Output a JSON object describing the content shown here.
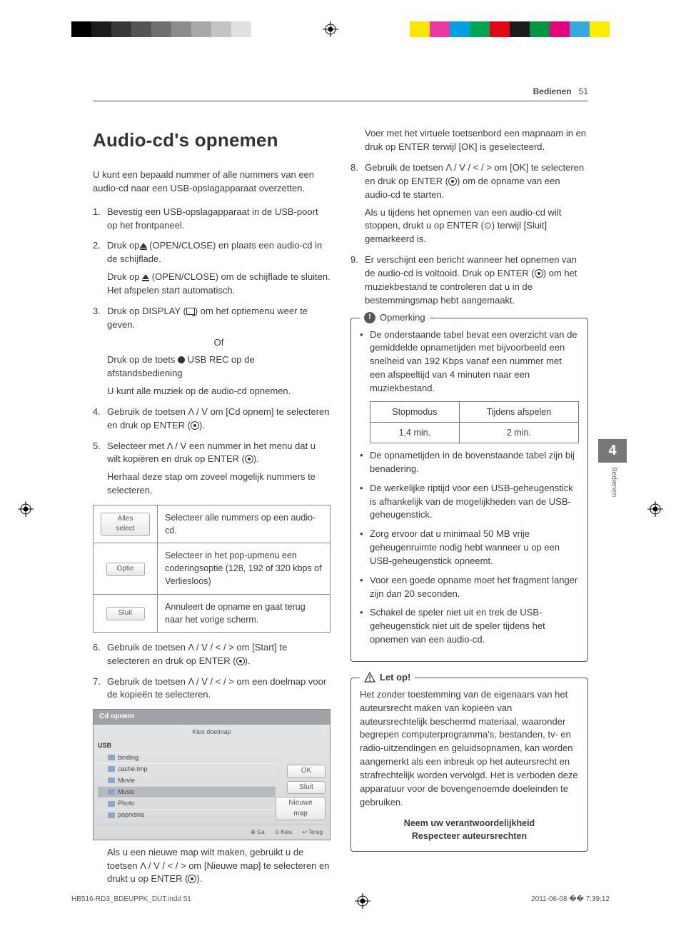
{
  "printbar": {
    "gray_shades": [
      "#000000",
      "#1c1c1c",
      "#383838",
      "#545454",
      "#707070",
      "#8c8c8c",
      "#a8a8a8",
      "#c4c4c4",
      "#e0e0e0",
      "#ffffff"
    ],
    "color_swatches": [
      "#ffffff",
      "#fce600",
      "#e73ba3",
      "#009fe3",
      "#00a54f",
      "#e30613",
      "#1d1d1b",
      "#009640",
      "#e6007e",
      "#36a9e1",
      "#ffed00"
    ]
  },
  "header": {
    "section": "Bedienen",
    "page": "51"
  },
  "left": {
    "h1": "Audio-cd's opnemen",
    "intro": "U kunt een bepaald nummer of alle nummers van een audio-cd naar een USB-opslagapparaat overzetten.",
    "steps": [
      {
        "text": "Bevestig een USB-opslagapparaat in de USB-poort op het frontpaneel."
      },
      {
        "text": "Druk op",
        "icon": "eject",
        "after": " (OPEN/CLOSE) en plaats een audio-cd in de schijflade.",
        "sub": [
          {
            "pre": "Druk op ",
            "icon": "eject",
            "post": " (OPEN/CLOSE) om de schijflade te sluiten. Het afspelen start automatisch."
          }
        ]
      },
      {
        "text": "Druk op DISPLAY (",
        "icon": "disp",
        "after": ") om het optiemenu weer te geven.",
        "center": "Of",
        "sub": [
          {
            "pre": "Druk op de toets ",
            "icon": "rec",
            "post": " USB REC op de afstandsbediening"
          },
          {
            "post": "U kunt alle muziek op de audio-cd opnemen."
          }
        ]
      },
      {
        "text": "Gebruik de toetsen ",
        "sym": "Λ / V",
        "after": " om [Cd opnem] te selecteren en druk op ENTER (",
        "icon2": "enter",
        "after2": ")."
      },
      {
        "text": "Selecteer met ",
        "sym": "Λ / V",
        "after": " een nummer in het menu dat u wilt kopiëren en druk op ENTER (",
        "icon2": "enter",
        "after2": ").",
        "sub": [
          {
            "post": "Herhaal deze stap om zoveel mogelijk nummers te selecteren."
          }
        ]
      }
    ],
    "options_table": [
      {
        "btn": "Alles select",
        "desc": "Selecteer alle nummers op een audio-cd."
      },
      {
        "btn": "Optie",
        "desc": "Selecteer in het pop-upmenu een coderingsoptie (128, 192 of 320 kbps of Verliesloos)"
      },
      {
        "btn": "Sluit",
        "desc": "Annuleert de opname en gaat terug naar het vorige scherm."
      }
    ],
    "steps2": [
      {
        "n": "6",
        "text": "Gebruik de toetsen ",
        "sym": "Λ / V / < / >",
        "after": " om [Start] te selecteren en druk op ENTER (",
        "icon2": "enter",
        "after2": ")."
      },
      {
        "n": "7",
        "text": "Gebruik de toetsen ",
        "sym": "Λ / V / < / >",
        "after": " om een doelmap voor de kopieën te selecteren."
      }
    ],
    "screenshot": {
      "title": "Cd opnem",
      "subtitle": "Kies doelmap",
      "root": "USB",
      "items": [
        "binding",
        "cache.tmp",
        "Movie",
        "Music",
        "Photo",
        "poprxsna"
      ],
      "selected_index": 3,
      "buttons": [
        "OK",
        "Sluit",
        "Nieuwe map"
      ],
      "footer": [
        "⊕ Ga",
        "⊙ Kies",
        "↩ Terug"
      ]
    },
    "caption": {
      "pre": "Als u een nieuwe map wilt maken, gebruikt u de toetsen ",
      "sym": "Λ / V / < / >",
      "mid": " om [Nieuwe map] te selecteren en drukt u op ENTER (",
      "post": ")."
    }
  },
  "right": {
    "cont": "Voer met het virtuele toetsenbord een mapnaam in en druk op ENTER terwijl [OK] is geselecteerd.",
    "steps": [
      {
        "n": "8",
        "text": "Gebruik de toetsen ",
        "sym": "Λ / V / < / >",
        "after": " om [OK] te selecteren en druk op ENTER (",
        "icon2": "enter",
        "after2": ") om de opname van een audio-cd te starten.",
        "sub": "Als u tijdens het opnemen van een audio-cd wilt stoppen, drukt u op ENTER (⊙) terwijl [Sluit] gemarkeerd is."
      },
      {
        "n": "9",
        "text": "Er verschijnt een bericht wanneer het opnemen van de audio-cd is voltooid. Druk op ENTER (",
        "icon2": "enter",
        "after2": ") om het muziekbestand te controleren dat u in de bestemmingsmap hebt aangemaakt."
      }
    ],
    "note": {
      "title": "Opmerking",
      "bullets_pre": "De onderstaande tabel bevat een overzicht van de gemiddelde opnametijden met bijvoorbeeld een snelheid van 192 Kbps vanaf een nummer met een afspeeltijd van 4 minuten naar een muziekbestand.",
      "table": {
        "h1": "Stopmodus",
        "h2": "Tijdens afspelen",
        "r1": "1,4 min.",
        "r2": "2 min."
      },
      "bullets": [
        "De opnametijden in de bovenstaande tabel zijn bij benadering.",
        "De werkelijke riptijd voor een USB-geheugenstick is afhankelijk van de mogelijkheden van de USB-geheugenstick.",
        "Zorg ervoor dat u minimaal 50 MB vrije geheugenruimte nodig hebt wanneer u op een USB-geheugenstick opneemt.",
        "Voor een goede opname moet het fragment langer zijn dan 20 seconden.",
        "Schakel de speler niet uit en trek de USB-geheugenstick niet uit de speler tijdens het opnemen van een audio-cd."
      ]
    },
    "caution": {
      "title": "Let op!",
      "body": "Het zonder toestemming van de eigenaars van het auteursrecht maken van kopieën van auteursrechtelijk beschermd materiaal, waaronder begrepen computerprogramma's, bestanden, tv- en radio-uitzendingen en geluidsopnamen, kan worden aangemerkt als een inbreuk op het auteursrecht en strafrechtelijk worden vervolgd. Het is verboden deze apparatuur voor de bovengenoemde doeleinden te gebruiken.",
      "footer1": "Neem uw verantwoordelijkheid",
      "footer2": "Respecteer auteursrechten"
    }
  },
  "side_tab": {
    "num": "4",
    "label": "Bedienen"
  },
  "footer": {
    "file": "HB516-RD3_BDEUPPK_DUT.indd   51",
    "time": "2011-06-08   �� 7:39:12"
  }
}
